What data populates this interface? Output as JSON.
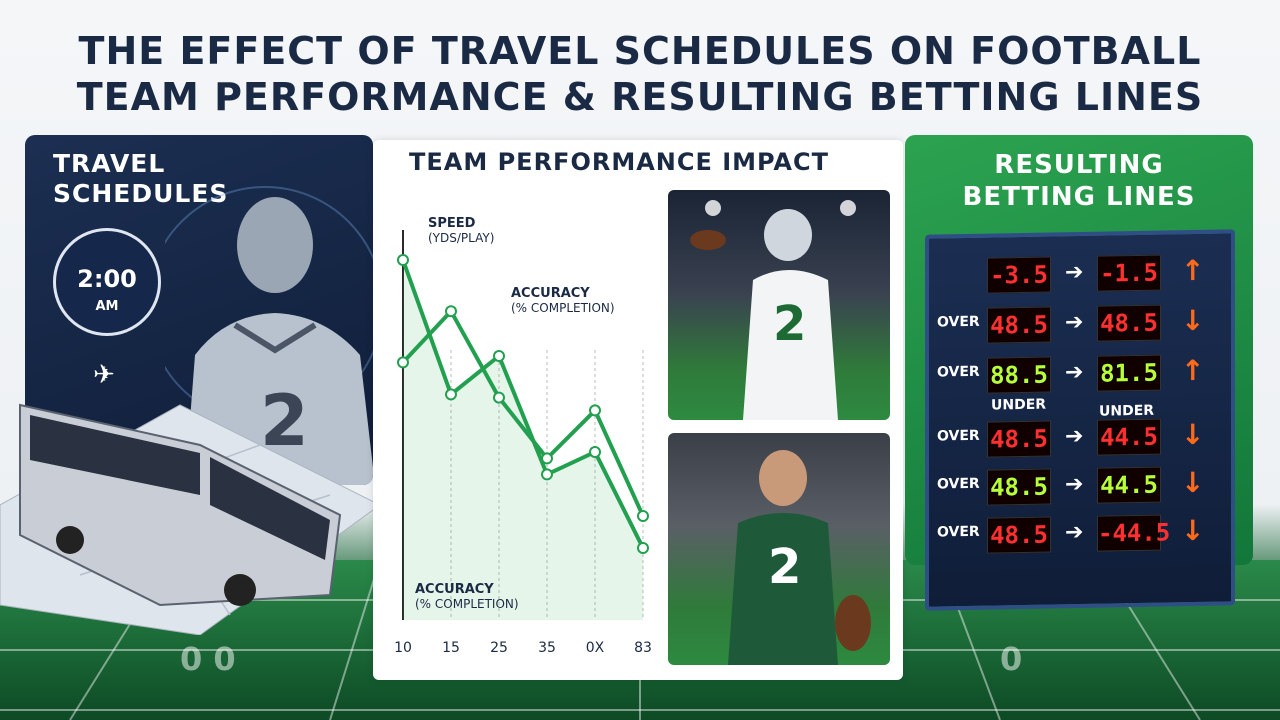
{
  "title": {
    "line1": "THE EFFECT OF TRAVEL SCHEDULES ON FOOTBALL",
    "line2": "TEAM PERFORMANCE & RESULTING BETTING LINES"
  },
  "travel": {
    "title_line1": "TRAVEL",
    "title_line2": "SCHEDULES",
    "clock_time": "2:00",
    "clock_ampm": "AM",
    "jersey_number": "2"
  },
  "performance": {
    "title": "TEAM PERFORMANCE IMPACT",
    "label_speed": "SPEED",
    "label_speed_unit": "(YDS/PLAY)",
    "label_accuracy_top": "ACCURACY",
    "label_accuracy_top_unit": "(% COMPLETION)",
    "label_accuracy_bottom": "ACCURACY",
    "label_accuracy_bottom_unit": "(% COMPLETION)",
    "x_ticks": [
      "10",
      "15",
      "25",
      "35",
      "0X",
      "83"
    ],
    "photo1_number": "2",
    "photo2_number": "2"
  },
  "chart_data": {
    "type": "line",
    "title": "",
    "xlabel": "",
    "ylabel": "",
    "categories": [
      "10",
      "15",
      "25",
      "35",
      "0X",
      "83"
    ],
    "series": [
      {
        "name": "SPEED (YDS/PLAY)",
        "values": [
          100,
          58,
          70,
          33,
          40,
          10
        ]
      },
      {
        "name": "ACCURACY (% COMPLETION)",
        "values": [
          68,
          84,
          57,
          38,
          53,
          20
        ]
      }
    ]
  },
  "betting": {
    "title_line1": "RESULTING",
    "title_line2": "BETTING LINES",
    "rows": [
      {
        "label": "",
        "from": "-3.5",
        "to": "-1.5",
        "dir": "up",
        "color": "red"
      },
      {
        "label": "OVER",
        "from": "48.5",
        "to": "48.5",
        "dir": "down",
        "color": "red"
      },
      {
        "label": "OVER",
        "from": "88.5",
        "to": "81.5",
        "dir": "up",
        "color": "green"
      },
      {
        "label": "OVER",
        "from": "48.5",
        "to": "44.5",
        "dir": "down",
        "color": "red"
      },
      {
        "label": "OVER",
        "from": "48.5",
        "to": "44.5",
        "dir": "down",
        "color": "green"
      },
      {
        "label": "OVER",
        "from": "48.5",
        "to": "-44.5",
        "dir": "down",
        "color": "red"
      }
    ],
    "under_left": "UNDER",
    "under_right": "UNDER",
    "arrow_glyph": "➔",
    "up_glyph": "↑",
    "down_glyph": "↓"
  },
  "colors": {
    "navy": "#1b2a44",
    "green": "#1e9e4a",
    "chart_line": "#22a050"
  }
}
